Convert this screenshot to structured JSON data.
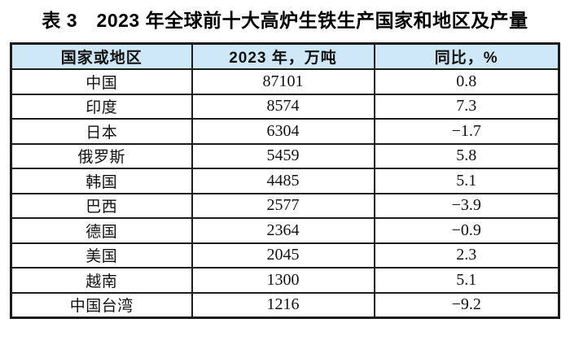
{
  "title": "表 3　2023 年全球前十大高炉生铁生产国家和地区及产量",
  "colors": {
    "header_bg": "#cfe8f7",
    "border": "#1c1c1c",
    "text": "#111111"
  },
  "table": {
    "columns": [
      "国家或地区",
      "2023 年，万吨",
      "同比，%"
    ],
    "rows": [
      {
        "region": "中国",
        "output": "87101",
        "yoy": "0.8"
      },
      {
        "region": "印度",
        "output": "8574",
        "yoy": "7.3"
      },
      {
        "region": "日本",
        "output": "6304",
        "yoy": "−1.7"
      },
      {
        "region": "俄罗斯",
        "output": "5459",
        "yoy": "5.8"
      },
      {
        "region": "韩国",
        "output": "4485",
        "yoy": "5.1"
      },
      {
        "region": "巴西",
        "output": "2577",
        "yoy": "−3.9"
      },
      {
        "region": "德国",
        "output": "2364",
        "yoy": "−0.9"
      },
      {
        "region": "美国",
        "output": "2045",
        "yoy": "2.3"
      },
      {
        "region": "越南",
        "output": "1300",
        "yoy": "5.1"
      },
      {
        "region": "中国台湾",
        "output": "1216",
        "yoy": "−9.2"
      }
    ]
  }
}
